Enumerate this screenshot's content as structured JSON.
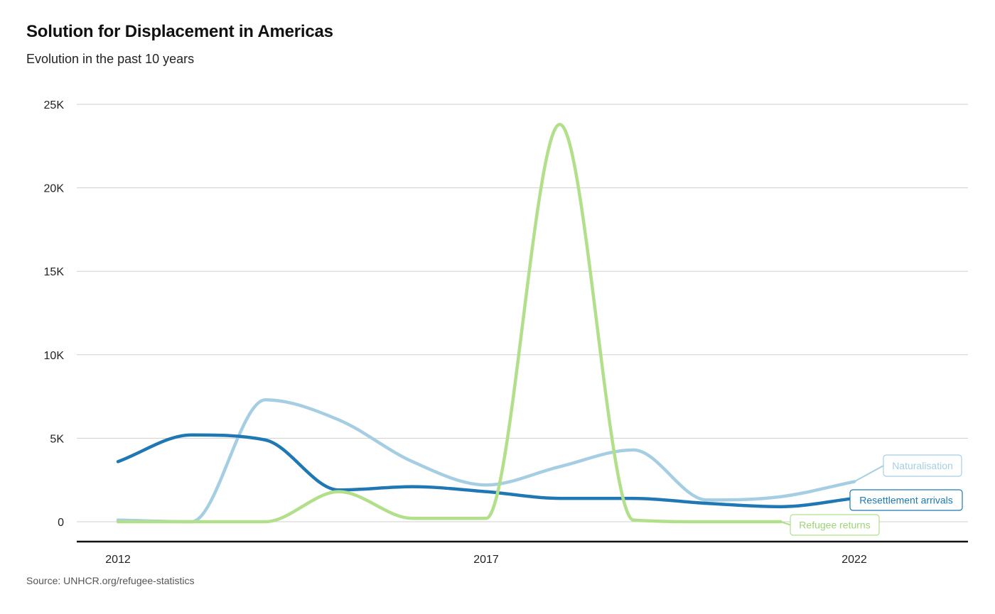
{
  "header": {
    "title": "Solution for Displacement in Americas",
    "subtitle": "Evolution in the past 10 years"
  },
  "footer": {
    "source": "Source: UNHCR.org/refugee-statistics"
  },
  "chart_data": {
    "type": "line",
    "title": "Solution for Displacement in Americas",
    "subtitle": "Evolution in the past 10 years",
    "xlabel": "",
    "ylabel": "",
    "xlim": [
      2012,
      2023.5
    ],
    "ylim": [
      0,
      25000
    ],
    "grid": true,
    "legend": "direct labels at line ends",
    "x_ticks": [
      {
        "label": "2012",
        "value": 2012
      },
      {
        "label": "2017",
        "value": 2017
      },
      {
        "label": "2022",
        "value": 2022
      }
    ],
    "y_ticks": [
      {
        "label": "0",
        "value": 0
      },
      {
        "label": "5K",
        "value": 5000
      },
      {
        "label": "10K",
        "value": 10000
      },
      {
        "label": "15K",
        "value": 15000
      },
      {
        "label": "20K",
        "value": 20000
      },
      {
        "label": "25K",
        "value": 25000
      }
    ],
    "series": [
      {
        "name": "Naturalisation",
        "color": "#a6cee3",
        "x": [
          2012,
          2013,
          2014,
          2015,
          2016,
          2017,
          2018,
          2019,
          2020,
          2021,
          2022
        ],
        "values": [
          100,
          0,
          7300,
          6100,
          3600,
          2200,
          3300,
          4300,
          1300,
          1500,
          2400
        ]
      },
      {
        "name": "Resettlement arrivals",
        "color": "#1f78b4",
        "x": [
          2012,
          2013,
          2014,
          2015,
          2016,
          2017,
          2018,
          2019,
          2020,
          2021,
          2022
        ],
        "values": [
          3600,
          5200,
          4900,
          1900,
          2100,
          1800,
          1400,
          1400,
          1100,
          900,
          1400
        ]
      },
      {
        "name": "Refugee returns",
        "color": "#b2df8a",
        "x": [
          2012,
          2013,
          2014,
          2015,
          2016,
          2017,
          2018,
          2019,
          2020,
          2021
        ],
        "values": [
          0,
          0,
          0,
          1800,
          200,
          200,
          23800,
          100,
          0,
          0
        ]
      }
    ]
  }
}
